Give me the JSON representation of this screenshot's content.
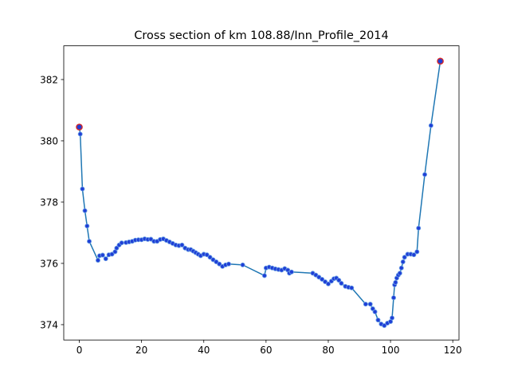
{
  "chart_data": {
    "type": "line",
    "title": "Cross section of km 108.88/Inn_Profile_2014",
    "xlabel": "",
    "ylabel": "",
    "xlim": [
      -5,
      122
    ],
    "ylim": [
      373.5,
      383.1
    ],
    "xticks": [
      0,
      20,
      40,
      60,
      80,
      100,
      120
    ],
    "yticks": [
      374,
      376,
      378,
      380,
      382
    ],
    "grid": false,
    "legend": "none",
    "colors": {
      "line": "#1f77b4",
      "marker": "#1f3fd6",
      "marker_edge": "#6fa3e6",
      "endpoint_edge": "#d62728"
    },
    "series": [
      {
        "x": [
          0.0,
          0.3,
          1.0,
          1.8,
          2.5,
          3.2,
          6.0,
          6.5,
          7.5,
          8.5,
          9.5,
          10.5,
          11.5,
          12.0,
          12.8,
          13.6,
          15.0,
          16.0,
          17.0,
          18.0,
          19.0,
          20.0,
          21.0,
          22.0,
          23.0,
          24.0,
          25.0,
          26.0,
          27.0,
          28.0,
          29.0,
          30.0,
          31.0,
          32.0,
          33.0,
          34.0,
          35.0,
          35.8,
          36.6,
          37.4,
          38.2,
          39.0,
          40.0,
          41.0,
          42.0,
          43.0,
          44.0,
          45.0,
          46.0,
          47.0,
          48.0,
          52.5,
          59.5,
          60.0,
          61.0,
          62.0,
          63.0,
          64.0,
          65.0,
          66.0,
          67.0,
          67.5,
          68.2,
          75.0,
          76.0,
          77.0,
          78.0,
          79.0,
          80.0,
          81.0,
          81.8,
          82.6,
          83.4,
          84.2,
          85.5,
          86.5,
          87.5,
          92.0,
          93.5,
          94.3,
          95.0,
          96.0,
          97.0,
          98.0,
          99.0,
          100.0,
          100.5,
          101.0,
          101.3,
          101.6,
          102.0,
          102.5,
          103.0,
          103.5,
          104.0,
          104.5,
          105.5,
          106.5,
          107.5,
          108.5,
          109.0,
          111.0,
          113.0,
          116.0
        ],
        "y": [
          380.45,
          380.22,
          378.43,
          377.72,
          377.22,
          376.72,
          376.1,
          376.25,
          376.27,
          376.15,
          376.28,
          376.3,
          376.38,
          376.5,
          376.6,
          376.67,
          376.68,
          376.7,
          376.72,
          376.76,
          376.77,
          376.77,
          376.8,
          376.78,
          376.79,
          376.72,
          376.72,
          376.78,
          376.8,
          376.75,
          376.7,
          376.65,
          376.6,
          376.58,
          376.6,
          376.5,
          376.45,
          376.45,
          376.4,
          376.35,
          376.3,
          376.25,
          376.3,
          376.28,
          376.2,
          376.12,
          376.05,
          375.98,
          375.9,
          375.95,
          375.98,
          375.95,
          375.6,
          375.85,
          375.88,
          375.85,
          375.82,
          375.8,
          375.78,
          375.83,
          375.78,
          375.68,
          375.72,
          375.68,
          375.62,
          375.55,
          375.48,
          375.4,
          375.33,
          375.42,
          375.5,
          375.52,
          375.45,
          375.35,
          375.25,
          375.22,
          375.2,
          374.67,
          374.67,
          374.52,
          374.42,
          374.15,
          374.02,
          373.97,
          374.05,
          374.1,
          374.22,
          374.88,
          375.3,
          375.38,
          375.52,
          375.62,
          375.68,
          375.85,
          376.05,
          376.2,
          376.3,
          376.3,
          376.28,
          376.38,
          377.15,
          378.9,
          380.5,
          382.6
        ]
      }
    ],
    "endpoints": [
      {
        "x": 0.0,
        "y": 380.45
      },
      {
        "x": 116.0,
        "y": 382.6
      }
    ]
  }
}
